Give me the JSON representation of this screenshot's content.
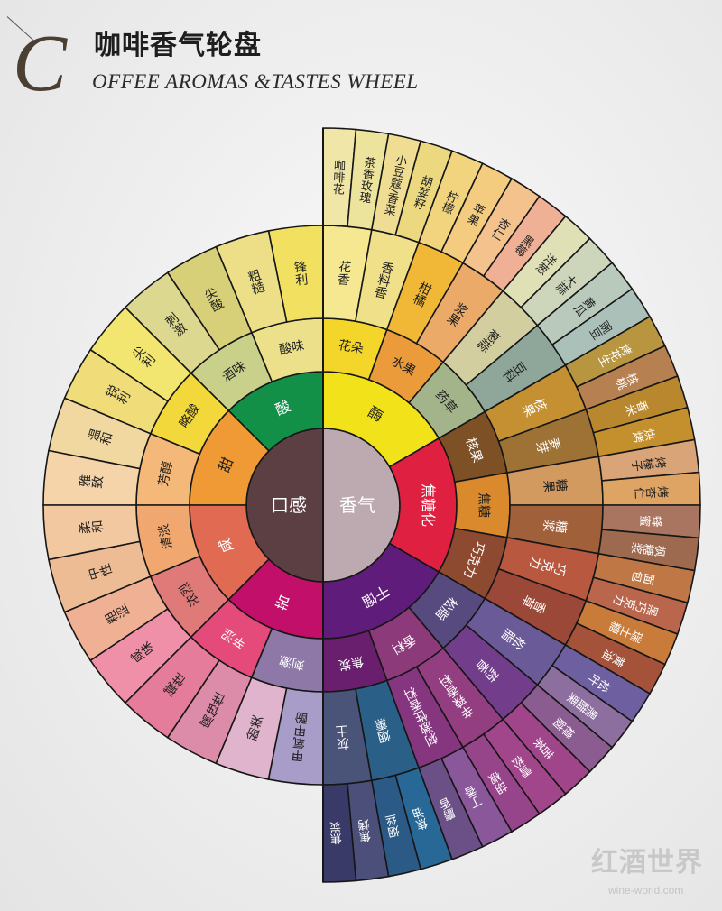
{
  "title": {
    "initial": "C",
    "chinese": "咖啡香气轮盘",
    "english": "OFFEE AROMAS &TASTES WHEEL"
  },
  "center": {
    "taste": {
      "label": "口感",
      "color": "#5c3f42"
    },
    "aroma": {
      "label": "香气",
      "color": "#bcaab0"
    }
  },
  "aroma": {
    "ring2": [
      {
        "label": "酶",
        "color": "#f2e21a"
      },
      {
        "label": "焦糖化",
        "color": "#e02040"
      },
      {
        "label": "干馏",
        "color": "#5f1c7a"
      }
    ],
    "ring3": [
      {
        "label": "花朵",
        "color": "#f4d62a"
      },
      {
        "label": "水果",
        "color": "#ec9b3a"
      },
      {
        "label": "药草",
        "color": "#a4b48a"
      },
      {
        "label": "核果",
        "color": "#7d5026"
      },
      {
        "label": "焦糖",
        "color": "#da8a2c"
      },
      {
        "label": "巧克力",
        "color": "#8e4a30"
      },
      {
        "label": "松脂",
        "color": "#574a7e"
      },
      {
        "label": "香料",
        "color": "#8c3a7a"
      },
      {
        "label": "焦炭",
        "color": "#6a1f6e"
      }
    ],
    "ring4": [
      {
        "label": "花香",
        "color": "#f6e890"
      },
      {
        "label": "香料香",
        "color": "#f0e08a"
      },
      {
        "label": "柑橘",
        "color": "#f0b836"
      },
      {
        "label": "浆果",
        "color": "#ecaa68"
      },
      {
        "label": "葱蒜",
        "color": "#d2cea0"
      },
      {
        "label": "豆科",
        "color": "#8fa79a"
      },
      {
        "label": "核果",
        "color": "#c49032"
      },
      {
        "label": "麦芽",
        "color": "#9e7234"
      },
      {
        "label": "糖果",
        "color": "#d39a60"
      },
      {
        "label": "糖浆",
        "color": "#a0603a"
      },
      {
        "label": "巧克力",
        "color": "#b8583f"
      },
      {
        "label": "香草",
        "color": "#9c4838"
      },
      {
        "label": "松脂",
        "color": "#6a5a98"
      },
      {
        "label": "药香",
        "color": "#723e8c"
      },
      {
        "label": "辛辣香料",
        "color": "#923e80"
      },
      {
        "label": "刺激性香料",
        "color": "#86357f"
      },
      {
        "label": "烟熏",
        "color": "#2a5f88"
      },
      {
        "label": "灰土",
        "color": "#4a5378"
      }
    ],
    "ring5": [
      {
        "label": "咖啡花",
        "color": "#efe6a8"
      },
      {
        "label": "茶香玫瑰",
        "color": "#ece39c"
      },
      {
        "label": "小豆蔻/香菜",
        "color": "#eedd93"
      },
      {
        "label": "胡荽籽",
        "color": "#ecd97f"
      },
      {
        "label": "柠檬",
        "color": "#f2d47e"
      },
      {
        "label": "苹果",
        "color": "#f3cc80"
      },
      {
        "label": "杏仁",
        "color": "#f4c28d"
      },
      {
        "label": "黑莓",
        "color": "#efb095"
      },
      {
        "label": "洋葱",
        "color": "#dfe0b5"
      },
      {
        "label": "大蒜",
        "color": "#cdd6bb"
      },
      {
        "label": "黄瓜",
        "color": "#b9c9bc"
      },
      {
        "label": "豌豆",
        "color": "#abc0b8"
      },
      {
        "label": "烤花生",
        "color": "#b8953f"
      },
      {
        "label": "核桃",
        "color": "#b78050"
      },
      {
        "label": "香米",
        "color": "#b9882e"
      },
      {
        "label": "烘烤",
        "color": "#c4902e"
      },
      {
        "label": "烤榛子",
        "color": "#d9a477"
      },
      {
        "label": "烤杏仁",
        "color": "#dea463"
      },
      {
        "label": "蜂蜜",
        "color": "#a97560"
      },
      {
        "label": "枫糖浆",
        "color": "#9d6a4f"
      },
      {
        "label": "面包",
        "color": "#c07746"
      },
      {
        "label": "黑巧克力",
        "color": "#b9664d"
      },
      {
        "label": "瑞士糖",
        "color": "#c97b3a"
      },
      {
        "label": "黄油",
        "color": "#a5523b"
      },
      {
        "label": "松叶",
        "color": "#6e5fa0"
      },
      {
        "label": "黑醋栗",
        "color": "#8c6f9e"
      },
      {
        "label": "樟脑",
        "color": "#8a5c8f"
      },
      {
        "label": "苦茶",
        "color": "#a0458a"
      },
      {
        "label": "雪松",
        "color": "#a2468c"
      },
      {
        "label": "胡椒",
        "color": "#97458a"
      },
      {
        "label": "丁香",
        "color": "#8a579a"
      },
      {
        "label": "麝香",
        "color": "#6b5087"
      },
      {
        "label": "焦油",
        "color": "#276896"
      },
      {
        "label": "烟丝",
        "color": "#2c5a87"
      },
      {
        "label": "焦烤",
        "color": "#4b4f7a"
      },
      {
        "label": "焦炭",
        "color": "#3a3a68"
      }
    ]
  },
  "taste": {
    "ring2": [
      {
        "label": "酸",
        "color": "#129048"
      },
      {
        "label": "甜",
        "color": "#f09a35"
      },
      {
        "label": "咸",
        "color": "#e06a52"
      },
      {
        "label": "苦",
        "color": "#c2106a"
      }
    ],
    "ring3": [
      {
        "label": "酸味",
        "color": "#ece08a"
      },
      {
        "label": "酒味",
        "color": "#c8d08a"
      },
      {
        "label": "略酸",
        "color": "#f2d83a"
      },
      {
        "label": "芳醇",
        "color": "#f4b878"
      },
      {
        "label": "清淡",
        "color": "#f0a870"
      },
      {
        "label": "浓烈",
        "color": "#e07a78"
      },
      {
        "label": "辛涩",
        "color": "#e44a7a"
      },
      {
        "label": "刺激",
        "color": "#8e78a8"
      }
    ],
    "ring4": [
      {
        "label": "锋利",
        "color": "#f2e060"
      },
      {
        "label": "粗糙",
        "color": "#ecdf88"
      },
      {
        "label": "尖酸",
        "color": "#d8d078"
      },
      {
        "label": "刺激",
        "color": "#dcd890"
      },
      {
        "label": "尖利",
        "color": "#f2e670"
      },
      {
        "label": "锐利",
        "color": "#f0dc78"
      },
      {
        "label": "温和",
        "color": "#f0d8a0"
      },
      {
        "label": "雅致",
        "color": "#f4d4a8"
      },
      {
        "label": "柔和",
        "color": "#f2c8a0"
      },
      {
        "label": "中性",
        "color": "#eebc94"
      },
      {
        "label": "粗涩",
        "color": "#f0b094"
      },
      {
        "label": "咸味",
        "color": "#f090a8"
      },
      {
        "label": "碱性",
        "color": "#e67c9c"
      },
      {
        "label": "腐蚀性",
        "color": "#dc8ca8"
      },
      {
        "label": "酚类",
        "color": "#e0b4cc"
      },
      {
        "label": "甲氧甲酚",
        "color": "#a89cc8"
      }
    ]
  },
  "watermark": {
    "logo": "红酒世界",
    "url": "wine-world.com"
  }
}
